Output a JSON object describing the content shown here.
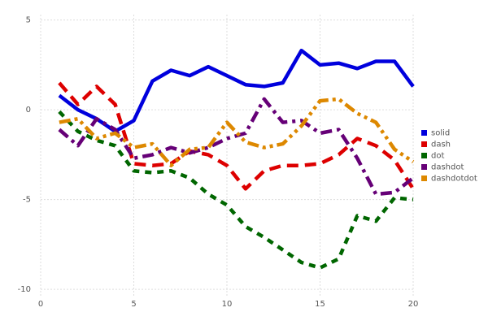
{
  "chart_data": {
    "type": "line",
    "x": [
      1,
      2,
      3,
      4,
      5,
      6,
      7,
      8,
      9,
      10,
      11,
      12,
      13,
      14,
      15,
      16,
      17,
      18,
      19,
      20
    ],
    "series": [
      {
        "name": "solid",
        "color": "#0000dd",
        "linestyle": "solid",
        "values": [
          0.8,
          0.0,
          -0.5,
          -1.2,
          -0.6,
          1.6,
          2.2,
          1.9,
          2.4,
          1.9,
          1.4,
          1.3,
          1.5,
          3.3,
          2.5,
          2.6,
          2.3,
          2.7,
          2.7,
          1.3
        ]
      },
      {
        "name": "dash",
        "color": "#dd0000",
        "linestyle": "dash",
        "values": [
          1.5,
          0.3,
          1.3,
          0.3,
          -3.0,
          -3.1,
          -3.0,
          -2.3,
          -2.5,
          -3.1,
          -4.4,
          -3.4,
          -3.1,
          -3.1,
          -3.0,
          -2.5,
          -1.6,
          -2.0,
          -2.8,
          -4.4
        ]
      },
      {
        "name": "dot",
        "color": "#006600",
        "linestyle": "dot",
        "values": [
          -0.1,
          -1.2,
          -1.7,
          -2.0,
          -3.4,
          -3.5,
          -3.4,
          -3.8,
          -4.7,
          -5.3,
          -6.5,
          -7.1,
          -7.8,
          -8.5,
          -8.8,
          -8.3,
          -5.9,
          -6.2,
          -4.9,
          -5.0
        ]
      },
      {
        "name": "dashdot",
        "color": "#660077",
        "linestyle": "dashdot",
        "values": [
          -1.1,
          -2.0,
          -0.5,
          -1.1,
          -2.7,
          -2.5,
          -2.1,
          -2.4,
          -2.1,
          -1.6,
          -1.3,
          0.6,
          -0.7,
          -0.6,
          -1.3,
          -1.1,
          -2.7,
          -4.7,
          -4.6,
          -3.8
        ]
      },
      {
        "name": "dashdotdot",
        "color": "#dd8800",
        "linestyle": "dashdotdot",
        "values": [
          -0.7,
          -0.5,
          -1.6,
          -1.3,
          -2.1,
          -1.9,
          -3.1,
          -2.2,
          -2.1,
          -0.7,
          -1.8,
          -2.1,
          -1.9,
          -0.9,
          0.5,
          0.6,
          -0.2,
          -0.7,
          -2.2,
          -2.9
        ]
      }
    ],
    "xlim": [
      0,
      20
    ],
    "xticks": [
      0,
      5,
      10,
      15,
      20
    ],
    "ylim": [
      -10.4,
      5.3
    ],
    "yticks": [
      -10,
      -5,
      0,
      5
    ],
    "grid": true,
    "legend": "right"
  }
}
